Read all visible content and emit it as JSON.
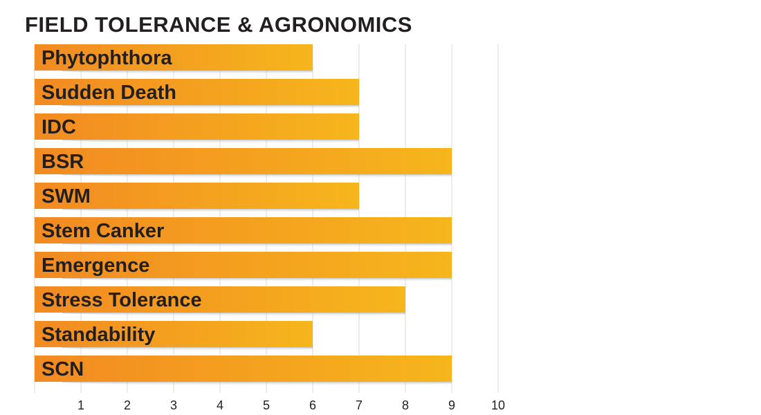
{
  "chart_data": {
    "type": "bar",
    "orientation": "horizontal",
    "title": "FIELD TOLERANCE & AGRONOMICS",
    "categories": [
      "Phytophthora",
      "Sudden Death",
      "IDC",
      "BSR",
      "SWM",
      "Stem Canker",
      "Emergence",
      "Stress Tolerance",
      "Standability",
      "SCN"
    ],
    "values": [
      6,
      7,
      7,
      9,
      7,
      9,
      9,
      8,
      6,
      9
    ],
    "xlim": [
      0,
      10
    ],
    "x_ticks": [
      "1",
      "2",
      "3",
      "4",
      "5",
      "6",
      "7",
      "8",
      "9",
      "10"
    ],
    "grid": true,
    "colors": {
      "bar_start": "#f28a22",
      "bar_end": "#f6b61c",
      "grid": "#d9d9d9",
      "text": "#231f20"
    }
  }
}
